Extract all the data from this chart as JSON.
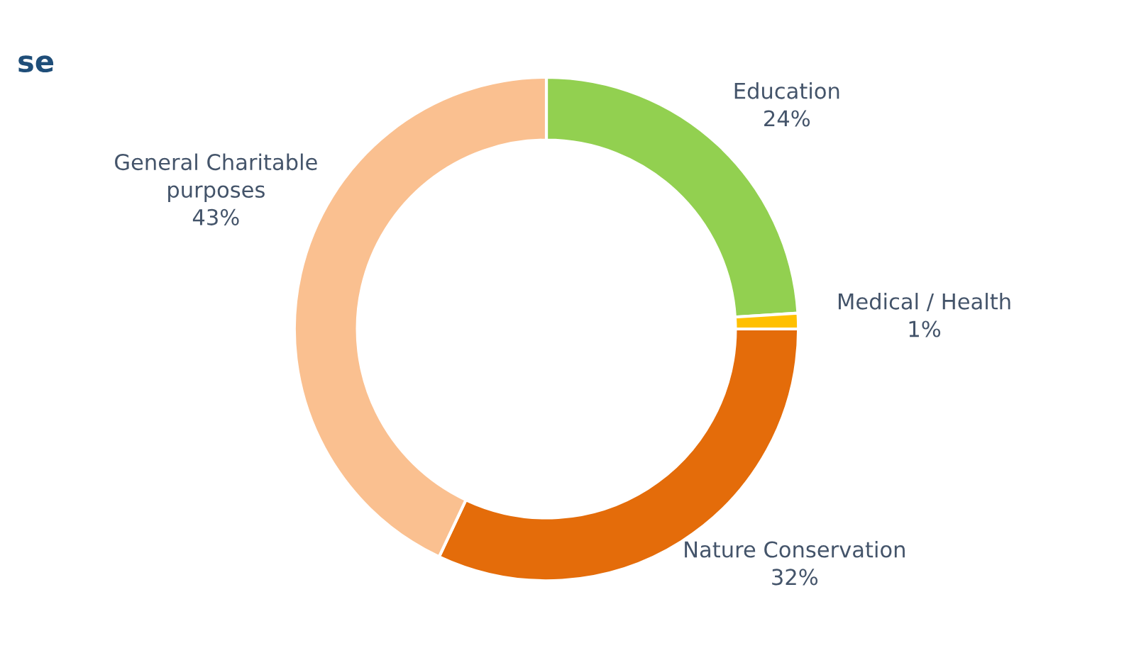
{
  "chart_data": {
    "type": "donut",
    "title": "se",
    "categories": [
      "Education",
      "Medical / Health",
      "Nature Conservation",
      "General Charitable\npurposes"
    ],
    "values": [
      24,
      1,
      32,
      43
    ],
    "value_labels": [
      "24%",
      "1%",
      "32%",
      "43%"
    ],
    "colors": [
      "#92d050",
      "#ffc000",
      "#e46c0a",
      "#fac090"
    ],
    "legend": false
  }
}
